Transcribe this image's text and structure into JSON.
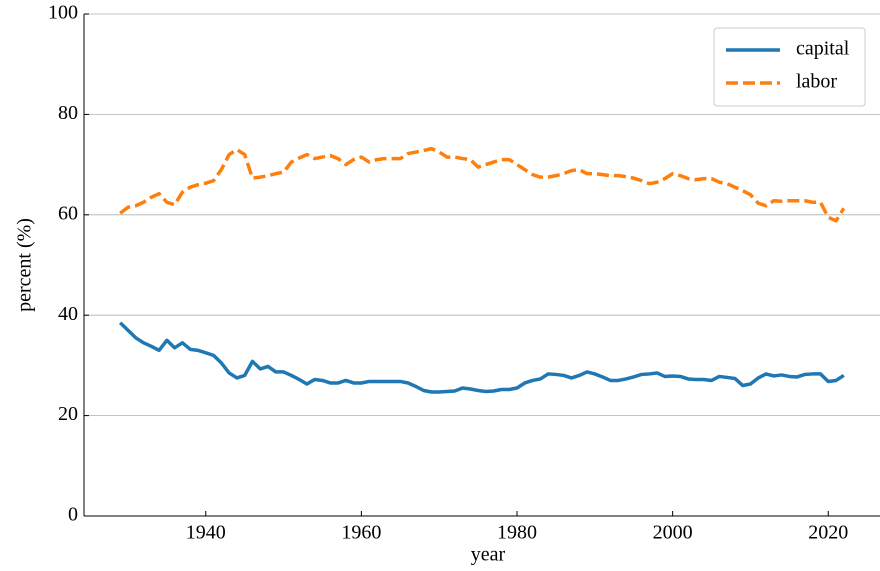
{
  "chart_data": {
    "type": "line",
    "xlabel": "year",
    "ylabel": "percent (%)",
    "x": [
      1929,
      1930,
      1931,
      1932,
      1933,
      1934,
      1935,
      1936,
      1937,
      1938,
      1939,
      1940,
      1941,
      1942,
      1943,
      1944,
      1945,
      1946,
      1947,
      1948,
      1949,
      1950,
      1951,
      1952,
      1953,
      1954,
      1955,
      1956,
      1957,
      1958,
      1959,
      1960,
      1961,
      1962,
      1963,
      1964,
      1965,
      1966,
      1967,
      1968,
      1969,
      1970,
      1971,
      1972,
      1973,
      1974,
      1975,
      1976,
      1977,
      1978,
      1979,
      1980,
      1981,
      1982,
      1983,
      1984,
      1985,
      1986,
      1987,
      1988,
      1989,
      1990,
      1991,
      1992,
      1993,
      1994,
      1995,
      1996,
      1997,
      1998,
      1999,
      2000,
      2001,
      2002,
      2003,
      2004,
      2005,
      2006,
      2007,
      2008,
      2009,
      2010,
      2011,
      2012,
      2013,
      2014,
      2015,
      2016,
      2017,
      2018,
      2019,
      2020,
      2021,
      2022
    ],
    "series": [
      {
        "name": "capital",
        "color": "#1f77b4",
        "linestyle": "solid",
        "values": [
          38.5,
          37,
          35.5,
          34.5,
          33.8,
          33,
          35,
          33.5,
          34.5,
          33.2,
          33,
          32.5,
          32,
          30.5,
          28.5,
          27.5,
          28,
          30.8,
          29.3,
          29.8,
          28.7,
          28.7,
          28,
          27.2,
          26.3,
          27.2,
          27,
          26.5,
          26.5,
          27,
          26.5,
          26.5,
          26.8,
          26.8,
          26.8,
          26.8,
          26.8,
          26.5,
          25.8,
          25,
          24.7,
          24.7,
          24.8,
          24.9,
          25.5,
          25.3,
          25,
          24.8,
          24.9,
          25.2,
          25.2,
          25.5,
          26.5,
          27,
          27.3,
          28.3,
          28.2,
          28,
          27.5,
          28,
          28.7,
          28.3,
          27.7,
          27,
          27,
          27.3,
          27.7,
          28.2,
          28.3,
          28.5,
          27.8,
          27.9,
          27.8,
          27.3,
          27.2,
          27.2,
          27,
          27.8,
          27.6,
          27.4,
          26,
          26.3,
          27.5,
          28.3,
          27.9,
          28.1,
          27.8,
          27.7,
          28.2,
          28.3,
          28.3,
          26.8,
          27,
          28
        ]
      },
      {
        "name": "labor",
        "color": "#ff7f0e",
        "linestyle": "dashed",
        "values": [
          60.3,
          61.5,
          61.8,
          62.5,
          63.5,
          64.2,
          62.5,
          62,
          64.5,
          65.5,
          66,
          66.3,
          66.8,
          69,
          72,
          73,
          72,
          67.3,
          67.5,
          67.8,
          68.2,
          68.5,
          70.5,
          71.3,
          72,
          71.2,
          71.5,
          71.8,
          71.2,
          70,
          71,
          71.5,
          70.5,
          71,
          71.2,
          71.2,
          71.2,
          72.2,
          72.5,
          72.8,
          73.2,
          72.5,
          71.5,
          71.5,
          71.2,
          71,
          69.5,
          70,
          70.5,
          71,
          71,
          70,
          69,
          68,
          67.5,
          67.5,
          67.8,
          68.2,
          68.8,
          69,
          68.2,
          68.2,
          68,
          67.8,
          67.8,
          67.6,
          67.3,
          66.8,
          66.2,
          66.5,
          67.2,
          68.2,
          67.8,
          67.2,
          67,
          67.2,
          67.2,
          66.5,
          66.2,
          65.5,
          64.8,
          64,
          62.3,
          61.8,
          62.8,
          62.7,
          62.8,
          62.8,
          62.8,
          62.5,
          62.5,
          59.5,
          58.8,
          61.3
        ]
      }
    ],
    "xlim": [
      1924.35,
      2026.65
    ],
    "xticks": [
      1940,
      1960,
      1980,
      2000,
      2020
    ],
    "ylim": [
      0,
      100
    ],
    "yticks": [
      0,
      20,
      40,
      60,
      80,
      100
    ],
    "grid": "y",
    "legend": "upper right"
  }
}
